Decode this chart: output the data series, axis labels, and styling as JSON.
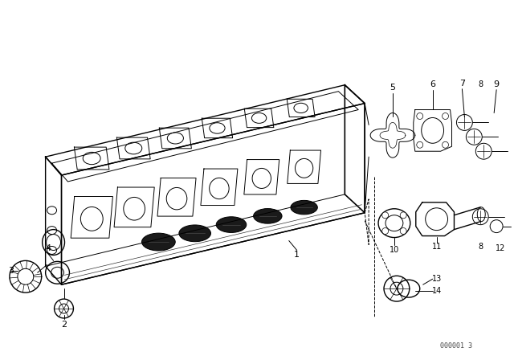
{
  "background_color": "#ffffff",
  "line_color": "#000000",
  "text_color": "#000000",
  "watermark": "000001 3",
  "fig_w": 6.4,
  "fig_h": 4.48,
  "dpi": 100
}
